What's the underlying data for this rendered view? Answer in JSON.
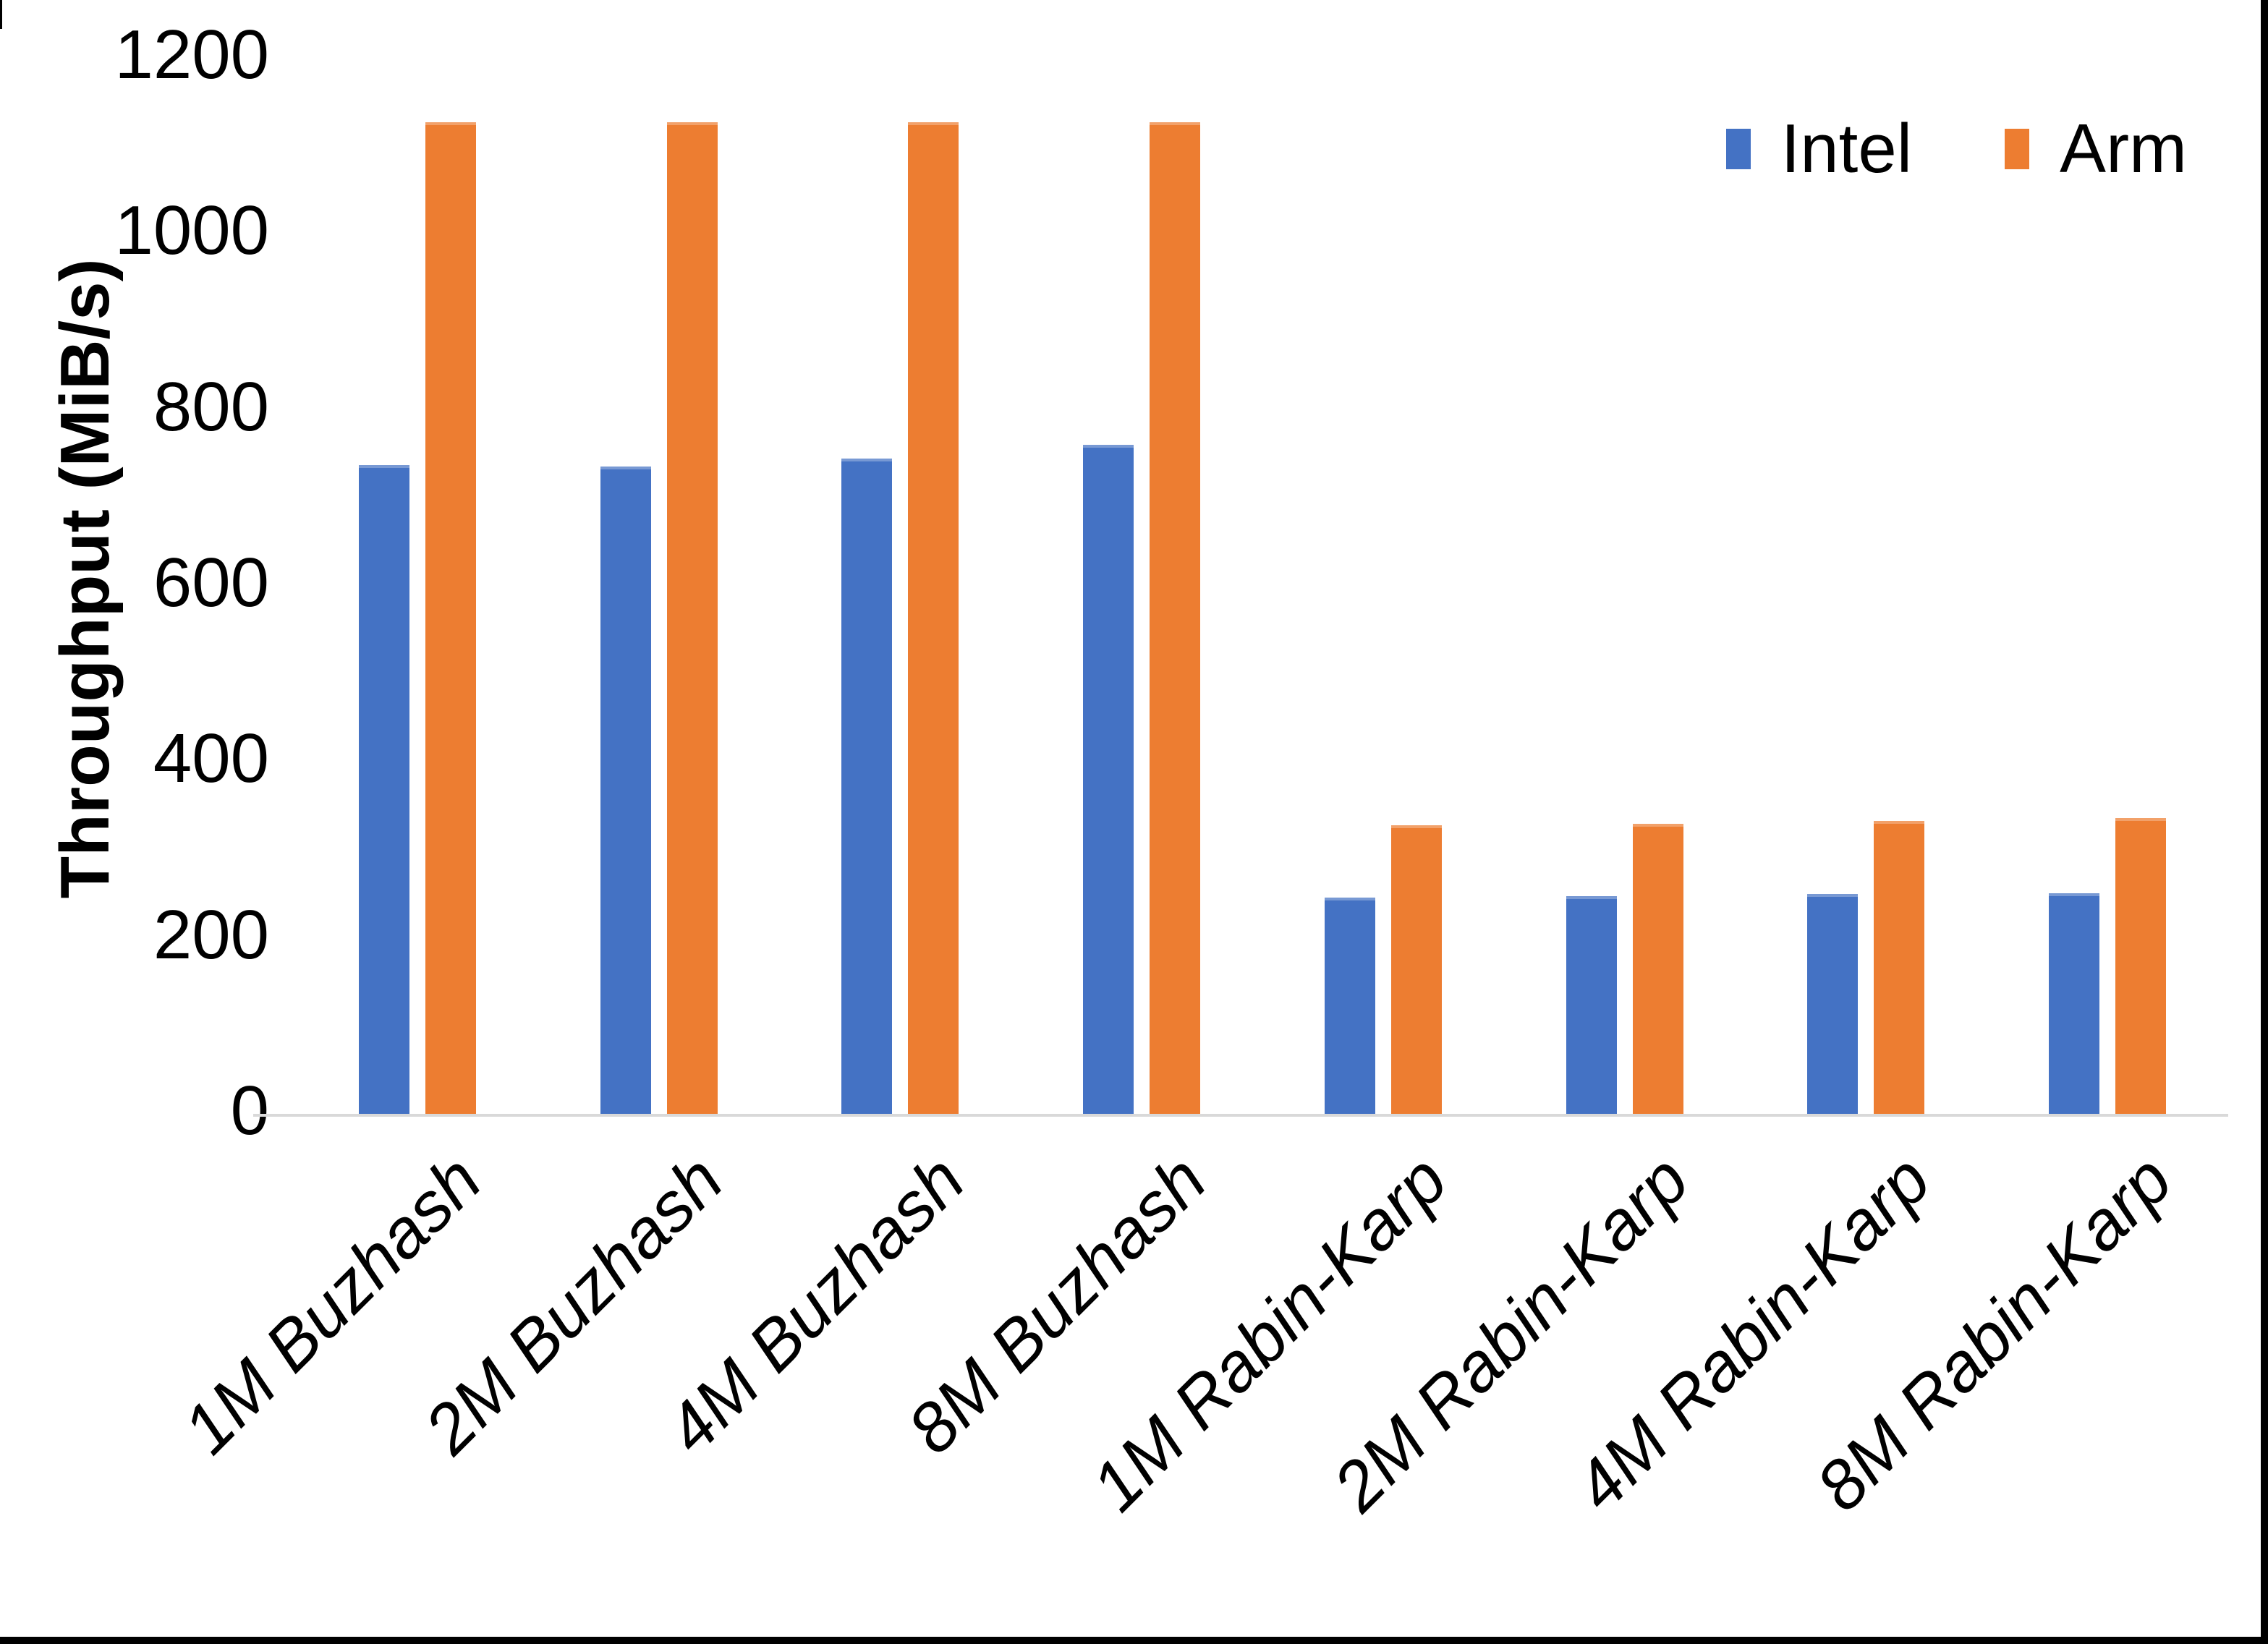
{
  "chart_data": {
    "type": "bar",
    "title": "",
    "xlabel": "",
    "ylabel": "Throughput (MiB/s)",
    "categories": [
      "1M Buzhash",
      "2M Buzhash",
      "4M Buzhash",
      "8M Buzhash",
      "1M Rabin-Karp",
      "2M Rabin-Karp",
      "4M Rabin-Karp",
      "8M Rabin-Karp"
    ],
    "series": [
      {
        "name": "Intel",
        "color": "#4472C4",
        "values": [
          737,
          736,
          745,
          760,
          246,
          247,
          250,
          251
        ]
      },
      {
        "name": "Arm",
        "color": "#ED7D31",
        "values": [
          1127,
          1127,
          1127,
          1127,
          328,
          330,
          333,
          336
        ]
      }
    ],
    "ylim": [
      0,
      1200
    ],
    "yticks": [
      0,
      200,
      400,
      600,
      800,
      1000,
      1200
    ],
    "legend_position": "top-right",
    "grid": false,
    "axis_line_color": "#D9D9D9",
    "text_color": "#000000",
    "background_color": "#FFFFFF"
  }
}
